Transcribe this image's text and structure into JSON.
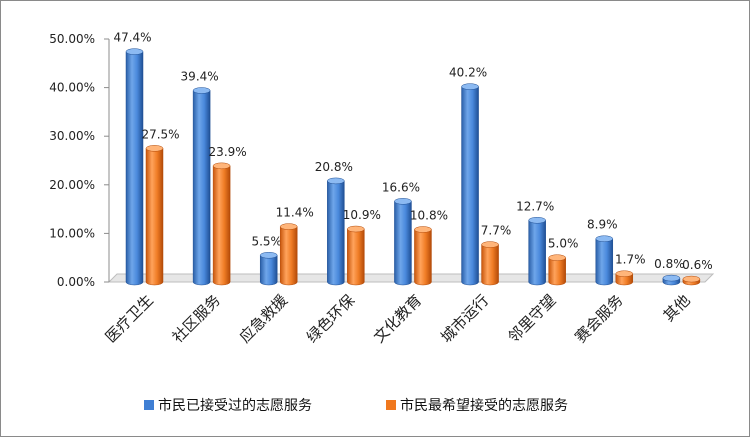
{
  "chart_data": {
    "type": "bar",
    "categories": [
      "医疗卫生",
      "社区服务",
      "应急救援",
      "绿色环保",
      "文化教育",
      "城市运行",
      "邻里守望",
      "赛会服务",
      "其他"
    ],
    "series": [
      {
        "name": "市民已接受过的志愿服务",
        "values": [
          47.4,
          39.4,
          5.5,
          20.8,
          16.6,
          40.2,
          12.7,
          8.9,
          0.8
        ],
        "labels": [
          "47.4%",
          "39.4%",
          "5.5%",
          "20.8%",
          "16.6%",
          "40.2%",
          "12.7%",
          "8.9%",
          "0.8%"
        ],
        "color": "#3f7fd4"
      },
      {
        "name": "市民最希望接受的志愿服务",
        "values": [
          27.5,
          23.9,
          11.4,
          10.9,
          10.8,
          7.7,
          5.0,
          1.7,
          0.6
        ],
        "labels": [
          "27.5%",
          "23.9%",
          "11.4%",
          "10.9%",
          "10.8%",
          "7.7%",
          "5.0%",
          "1.7%",
          "0.6%"
        ],
        "color": "#f0781e"
      }
    ],
    "ylim": [
      0,
      50
    ],
    "yticks": [
      "0.00%",
      "10.00%",
      "20.00%",
      "30.00%",
      "40.00%",
      "50.00%"
    ],
    "grid": false,
    "legend_position": "bottom",
    "style": "3d-cylinder"
  }
}
